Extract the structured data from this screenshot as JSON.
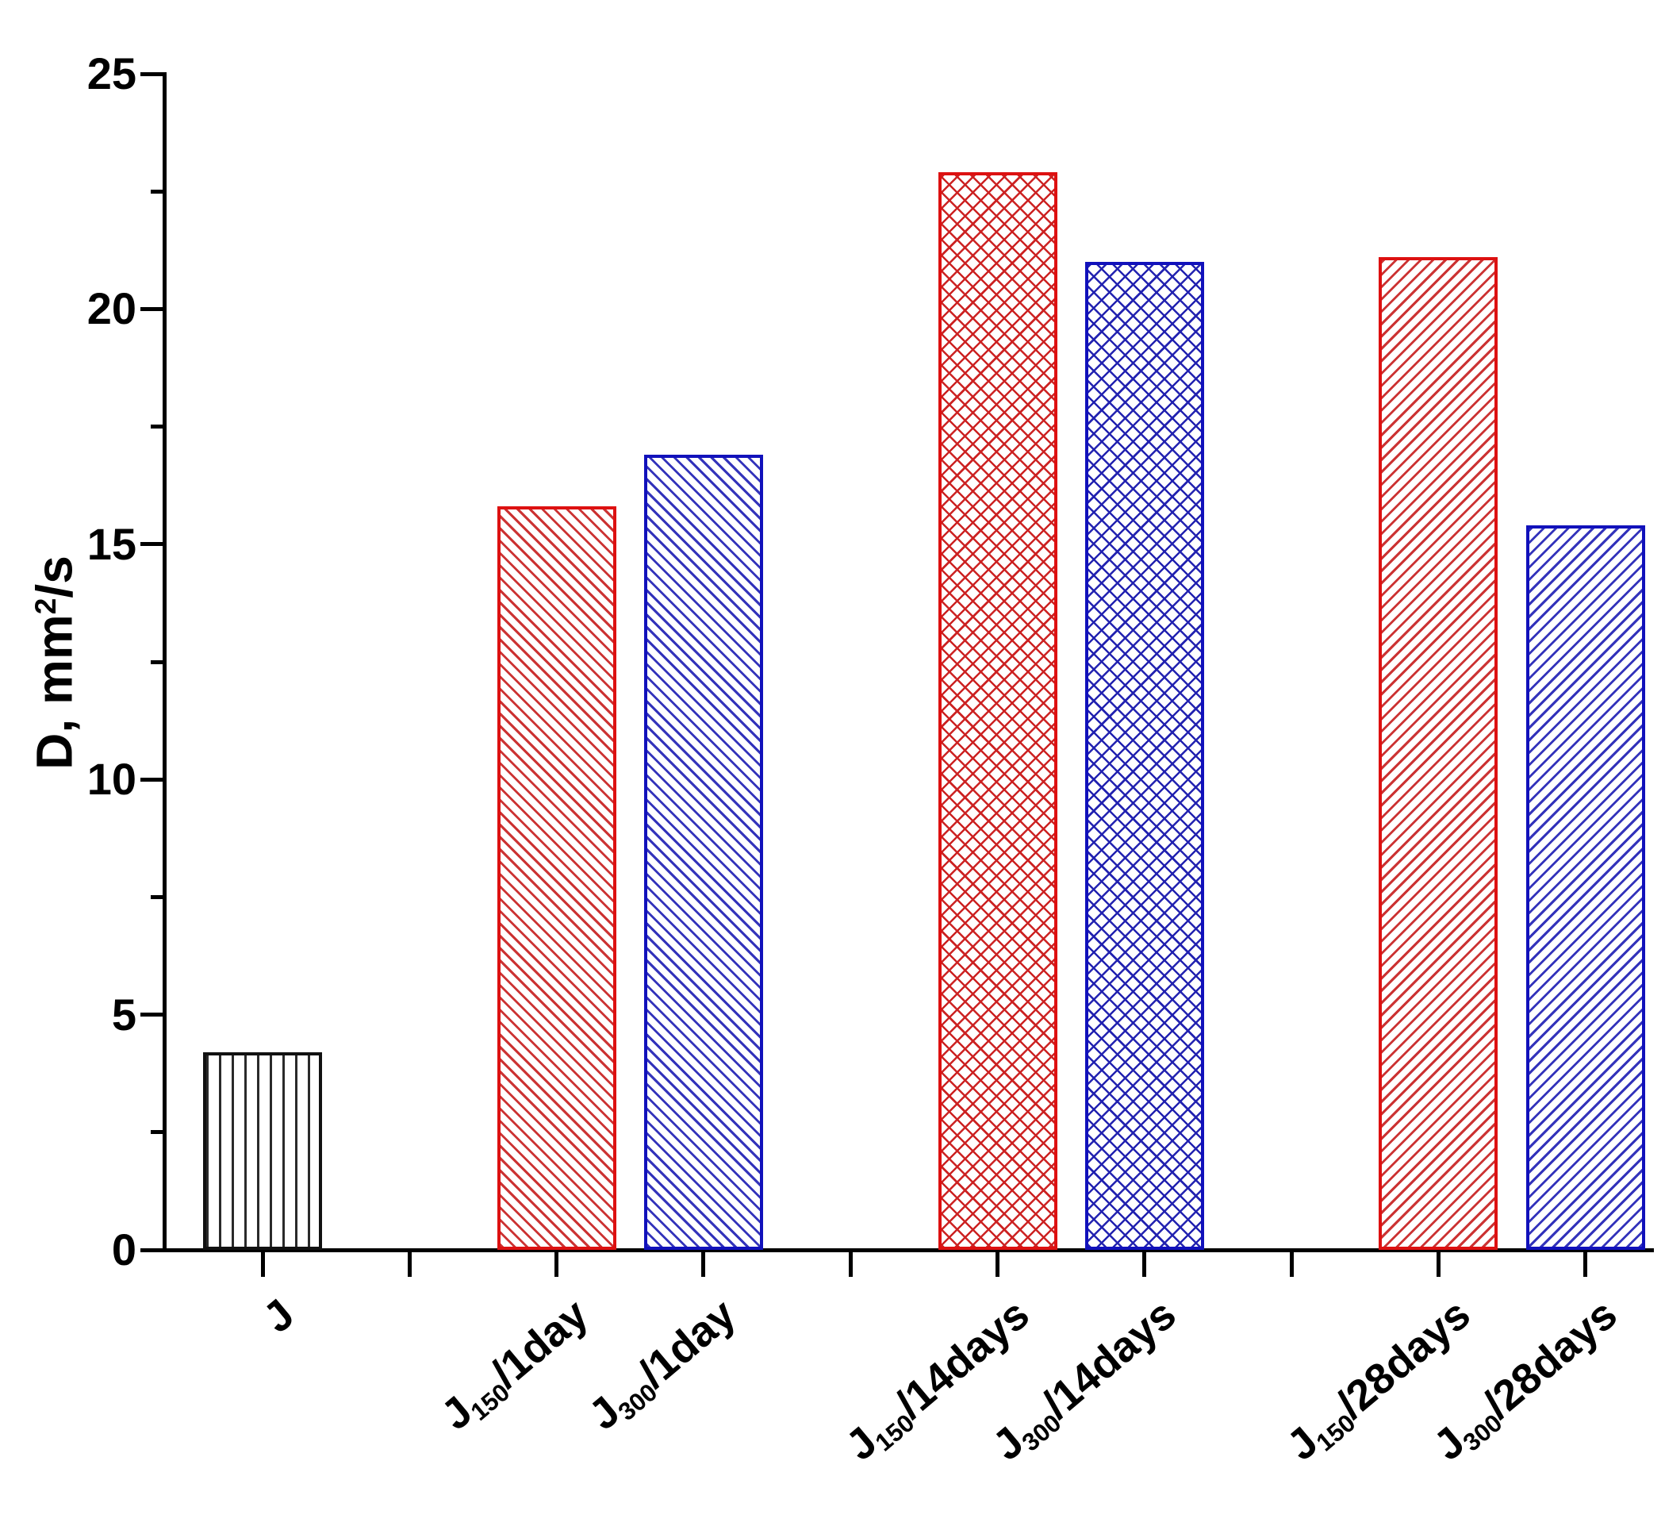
{
  "figure": {
    "background": "#ffffff",
    "axis_color": "#000000"
  },
  "chart_data": {
    "type": "bar",
    "title": "",
    "xlabel": "",
    "ylabel": "D, mm²/s",
    "ylabel_parts": {
      "prefix": "D, mm",
      "sup": "2",
      "suffix": "/s"
    },
    "y_axis": {
      "min": 0,
      "max": 25,
      "major_ticks": [
        0,
        5,
        10,
        15,
        20,
        25
      ],
      "major_tick_labels": [
        "0",
        "5",
        "10",
        "15",
        "20",
        "25"
      ],
      "minor_ticks": [
        2.5,
        7.5,
        12.5,
        17.5,
        22.5
      ],
      "grid": false
    },
    "x_axis": {
      "tick_slots": [
        0,
        1,
        2,
        3,
        4,
        5,
        6,
        7,
        8,
        9
      ],
      "grid": false
    },
    "legend": {
      "shown": false
    },
    "categories": [
      {
        "key": "J",
        "label_main": "J",
        "label_sub": "",
        "label_rest": "",
        "slot": 0,
        "value": 4.2,
        "hatch": "vertical",
        "hatch_color": "#2a2a2a",
        "border_color": "#111111"
      },
      {
        "key": "J150-1day",
        "label_main": "J",
        "label_sub": "150",
        "label_rest": "/1day",
        "slot": 2,
        "value": 15.8,
        "hatch": "diagonal-backslash",
        "hatch_color": "#cc3333",
        "border_color": "#dd1111"
      },
      {
        "key": "J300-1day",
        "label_main": "J",
        "label_sub": "300",
        "label_rest": "/1day",
        "slot": 3,
        "value": 16.9,
        "hatch": "diagonal-backslash",
        "hatch_color": "#3333bb",
        "border_color": "#1111bb"
      },
      {
        "key": "J150-14days",
        "label_main": "J",
        "label_sub": "150",
        "label_rest": "/14days",
        "slot": 5,
        "value": 22.9,
        "hatch": "crosshatch",
        "hatch_color": "#cc2222",
        "border_color": "#dd1111"
      },
      {
        "key": "J300-14days",
        "label_main": "J",
        "label_sub": "300",
        "label_rest": "/14days",
        "slot": 6,
        "value": 21.0,
        "hatch": "crosshatch",
        "hatch_color": "#2222b0",
        "border_color": "#1111bb"
      },
      {
        "key": "J150-28days",
        "label_main": "J",
        "label_sub": "150",
        "label_rest": "/28days",
        "slot": 8,
        "value": 21.1,
        "hatch": "diagonal-slash",
        "hatch_color": "#cc3333",
        "border_color": "#dd1111"
      },
      {
        "key": "J300-28days",
        "label_main": "J",
        "label_sub": "300",
        "label_rest": "/28days",
        "slot": 9,
        "value": 15.4,
        "hatch": "diagonal-slash",
        "hatch_color": "#3333bb",
        "border_color": "#1111bb"
      }
    ]
  }
}
